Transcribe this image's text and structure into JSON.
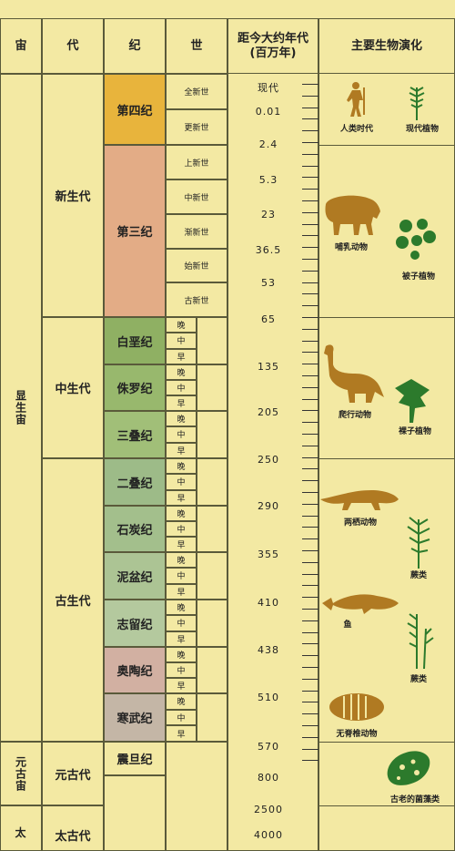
{
  "headers": {
    "eon": "宙",
    "era": "代",
    "period": "纪",
    "epoch": "世",
    "age_line1": "距今大约年代",
    "age_line2": "(百万年)",
    "life": "主要生物演化"
  },
  "eons": {
    "phanerozoic": "显生宙",
    "proterozoic": "元古宙",
    "archean": "太"
  },
  "eras": {
    "cenozoic": "新生代",
    "mesozoic": "中生代",
    "paleozoic": "古生代",
    "proterozoic": "元古代",
    "archean": "太古代"
  },
  "periods": [
    {
      "name": "第四纪",
      "color": "#e8b43c"
    },
    {
      "name": "第三纪",
      "color": "#e3ac86"
    },
    {
      "name": "白垩纪",
      "color": "#8fb063"
    },
    {
      "name": "侏罗纪",
      "color": "#98b86d"
    },
    {
      "name": "三叠纪",
      "color": "#a1bf78"
    },
    {
      "name": "二叠纪",
      "color": "#9dbb88"
    },
    {
      "name": "石炭纪",
      "color": "#a3bf8c"
    },
    {
      "name": "泥盆纪",
      "color": "#acc494"
    },
    {
      "name": "志留纪",
      "color": "#b4c99e"
    },
    {
      "name": "奥陶纪",
      "color": "#d2b0a2"
    },
    {
      "name": "寒武纪",
      "color": "#c4b6a6"
    },
    {
      "name": "震旦纪",
      "color": "#f3e9a3"
    }
  ],
  "cenozoic_epochs": [
    "全新世",
    "更新世",
    "上新世",
    "中新世",
    "渐新世",
    "始新世",
    "古新世"
  ],
  "sub_epochs": [
    "晚",
    "中",
    "早"
  ],
  "ages": [
    "现代",
    "0.01",
    "2.4",
    "5.3",
    "23",
    "36.5",
    "53",
    "65",
    "135",
    "205",
    "250",
    "290",
    "355",
    "410",
    "438",
    "510",
    "570",
    "800",
    "2500",
    "4000"
  ],
  "life": {
    "human": "人类时代",
    "modern_plants": "现代植物",
    "mammals": "哺乳动物",
    "angiosperms": "被子植物",
    "reptiles": "爬行动物",
    "gymnosperms": "裸子植物",
    "amphibians": "两栖动物",
    "ferns1": "蕨类",
    "fish": "鱼",
    "ferns2": "蕨类",
    "invertebrates": "无脊椎动物",
    "algae": "古老的菌藻类"
  },
  "colors": {
    "background": "#f3e9a3",
    "border": "#5a5a3a",
    "fossil": "#b07a22",
    "plant": "#2c7a2c"
  }
}
